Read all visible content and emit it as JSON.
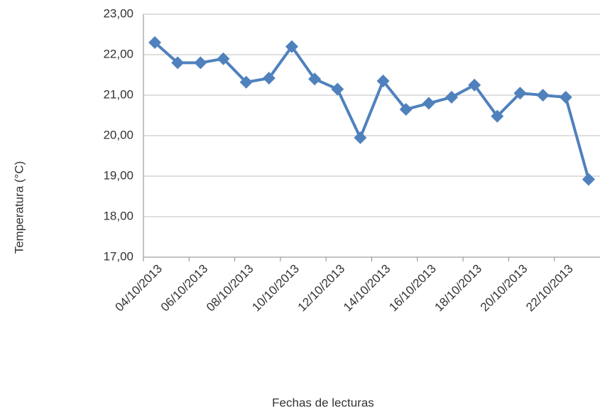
{
  "chart_data": {
    "type": "line",
    "xlabel": "Fechas de lecturas",
    "ylabel": "Temperatura (°C)",
    "categories": [
      "04/10/2013",
      null,
      "06/10/2013",
      null,
      "08/10/2013",
      null,
      "10/10/2013",
      null,
      "12/10/2013",
      null,
      "14/10/2013",
      null,
      "16/10/2013",
      null,
      "18/10/2013",
      null,
      "20/10/2013",
      null,
      "22/10/2013",
      null
    ],
    "series": [
      {
        "name": "Temperatura",
        "color": "#4f81bd",
        "values": [
          22.3,
          21.8,
          21.8,
          21.9,
          21.32,
          21.42,
          22.2,
          21.4,
          21.15,
          19.95,
          21.35,
          20.65,
          20.8,
          20.95,
          21.25,
          20.48,
          21.05,
          21.0,
          20.95,
          18.92
        ]
      }
    ],
    "ylim": [
      17,
      23
    ],
    "yticks": [
      {
        "value": 17,
        "label": "17,00"
      },
      {
        "value": 18,
        "label": "18,00"
      },
      {
        "value": 19,
        "label": "19,00"
      },
      {
        "value": 20,
        "label": "20,00"
      },
      {
        "value": 21,
        "label": "21,00"
      },
      {
        "value": 22,
        "label": "22,00"
      },
      {
        "value": 23,
        "label": "23,00"
      }
    ],
    "grid": true
  }
}
